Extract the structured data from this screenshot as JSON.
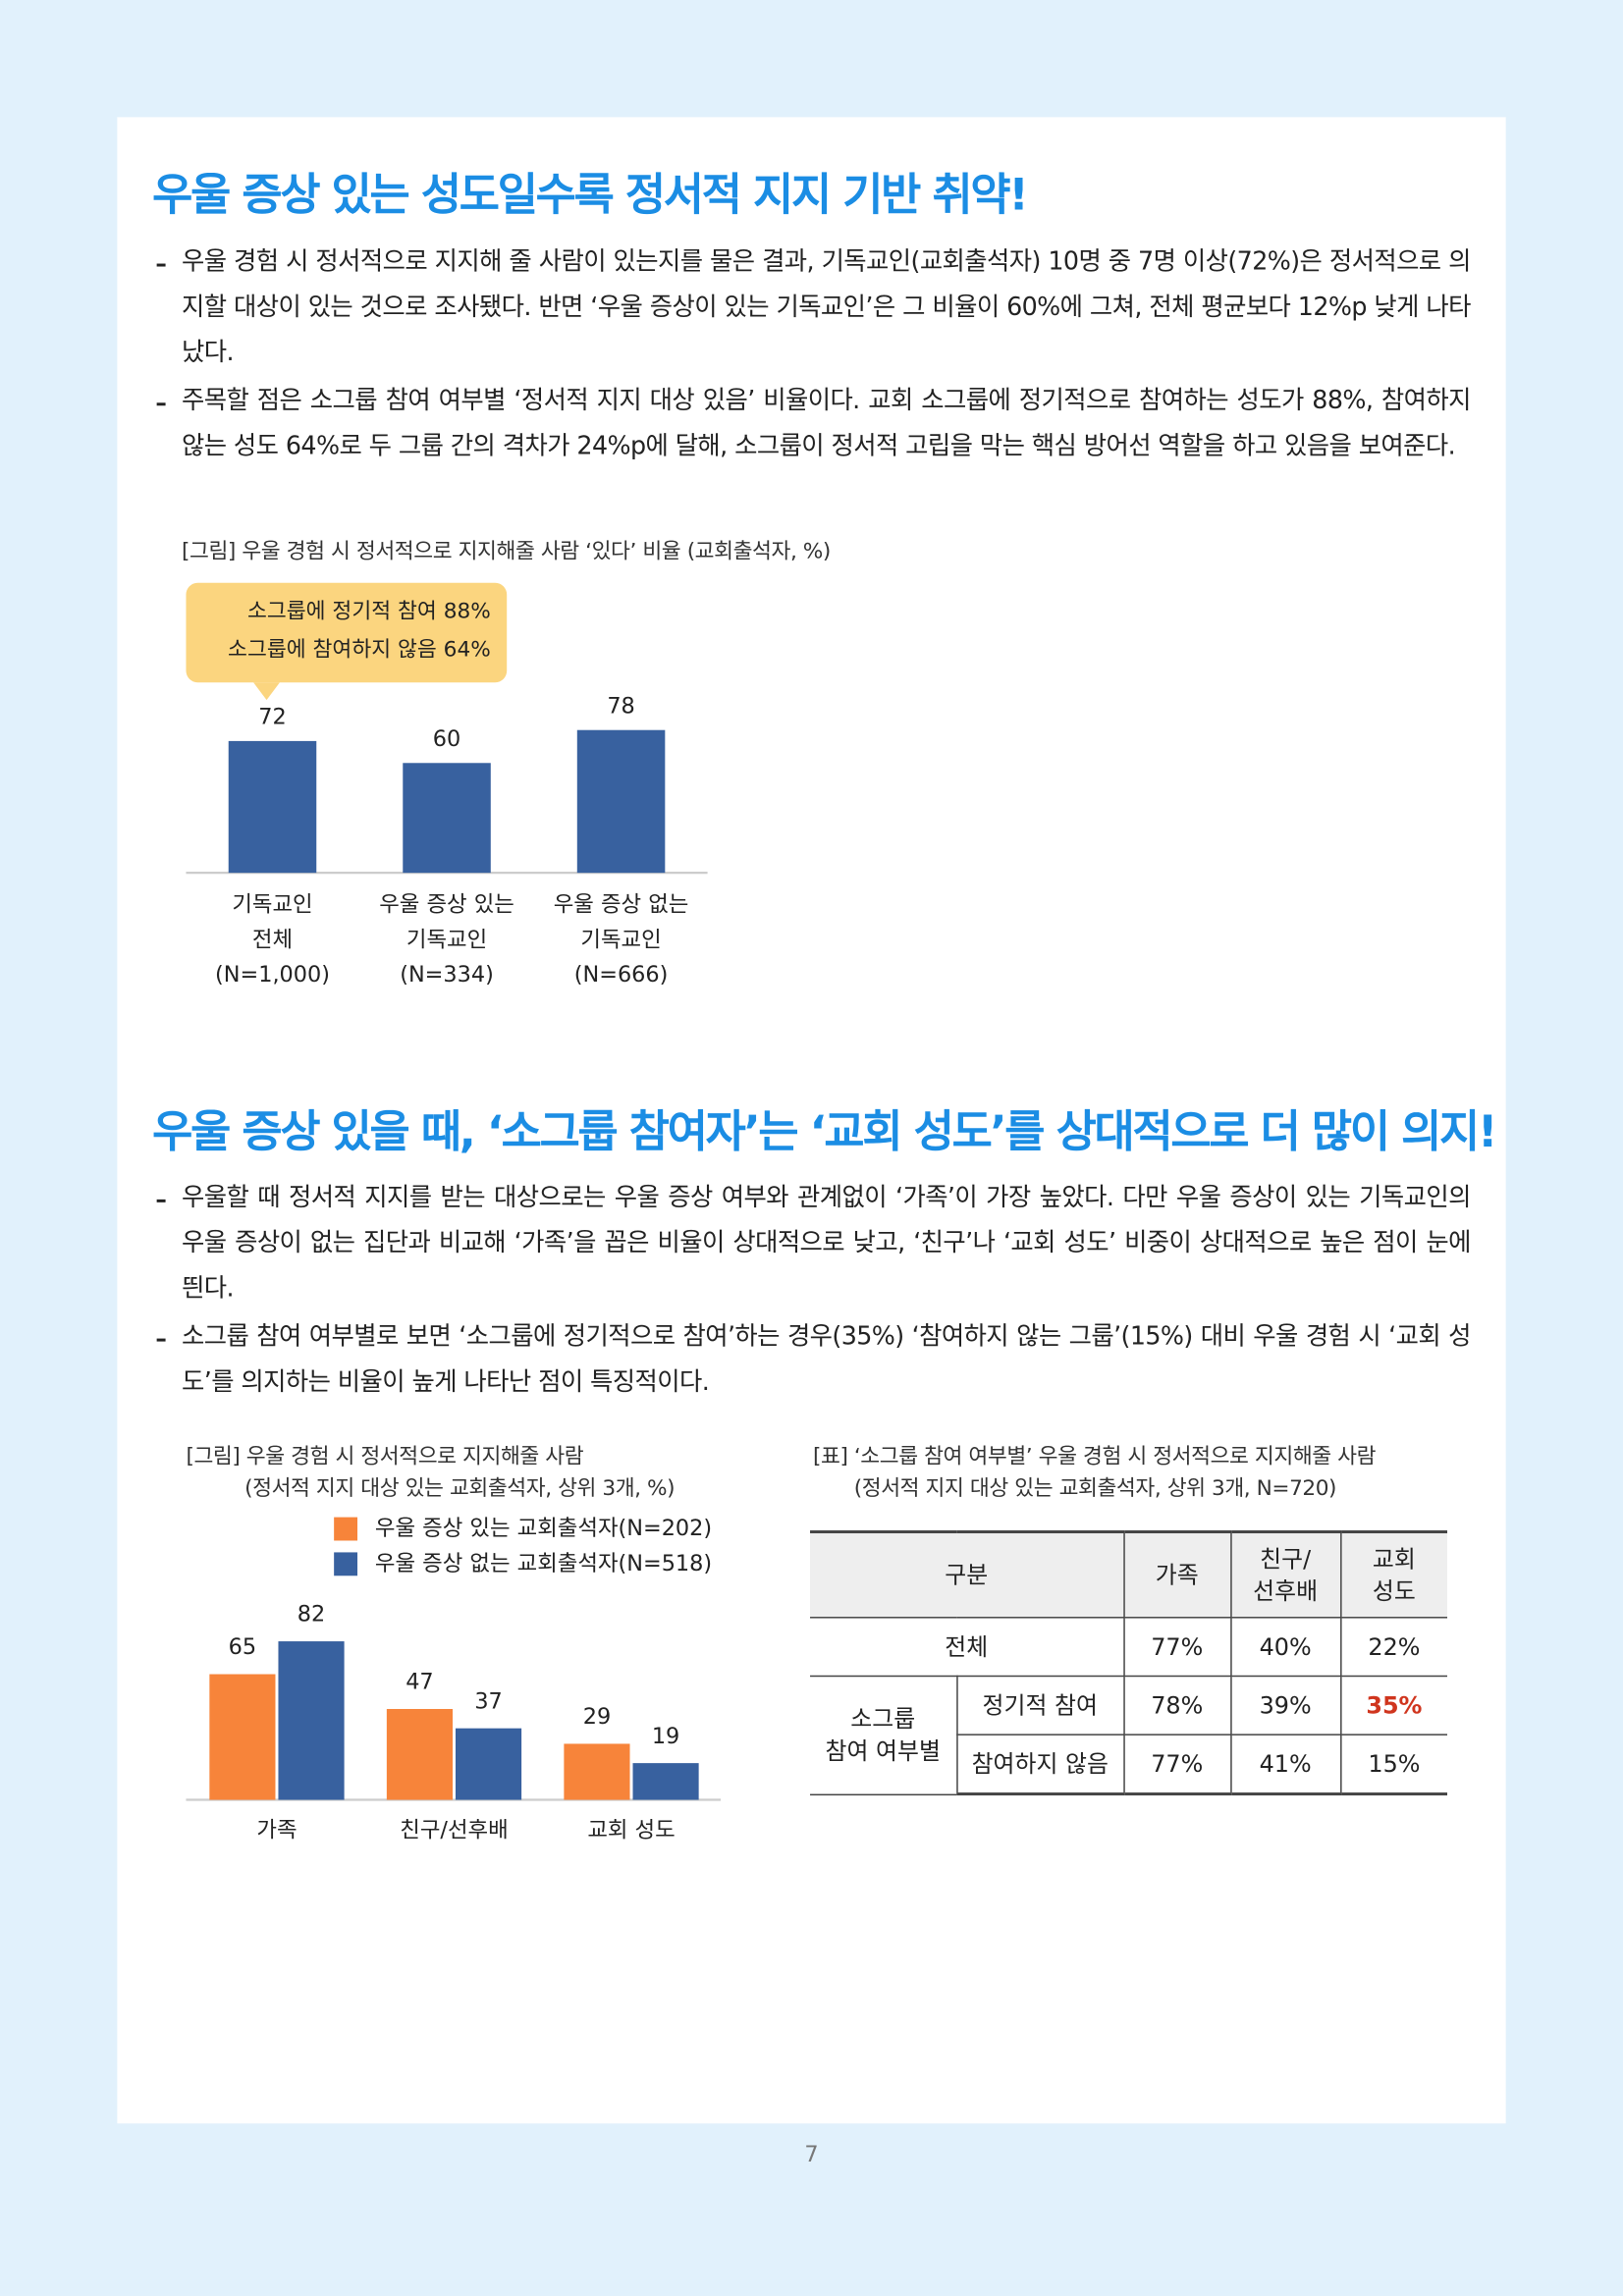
{
  "section1": {
    "title": "우울 증상 있는 성도일수록 정서적 지지 기반 취약!",
    "bullets": [
      "우울 경험 시 정서적으로 지지해 줄 사람이 있는지를 물은 결과, 기독교인(교회출석자) 10명 중 7명 이상(72%)은 정서적으로 의지할 대상이 있는 것으로 조사됐다. 반면 ‘우울 증상이 있는 기독교인’은 그 비율이 60%에 그쳐, 전체 평균보다 12%p 낮게 나타났다.",
      "주목할 점은 소그룹 참여 여부별 ‘정서적 지지 대상 있음’ 비율이다. 교회 소그룹에 정기적으로 참여하는 성도가 88%, 참여하지 않는 성도 64%로 두 그룹 간의 격차가 24%p에 달해, 소그룹이 정서적 고립을 막는 핵심 방어선 역할을 하고 있음을 보여준다."
    ]
  },
  "section2": {
    "title": "우울 증상 있을 때, ‘소그룹 참여자’는 ‘교회 성도’를 상대적으로 더 많이 의지!",
    "bullets": [
      "우울할 때 정서적 지지를 받는 대상으로는 우울 증상 여부와 관계없이 ‘가족’이 가장 높았다. 다만 우울 증상이 있는 기독교인의 우울 증상이 없는 집단과 비교해 ‘가족’을 꼽은 비율이 상대적으로 낮고, ‘친구’나 ‘교회 성도’ 비중이 상대적으로 높은 점이 눈에 띈다.",
      "소그룹 참여 여부별로 보면 ‘소그룹에 정기적으로 참여’하는 경우(35%) ‘참여하지 않는 그룹’(15%) 대비 우울 경험 시 ‘교회 성도’를 의지하는 비율이 높게 나타난 점이 특징적이다."
    ]
  },
  "chart_data": [
    {
      "type": "bar",
      "title": [
        "[그림] 우울 경험 시 정서적으로 지지해줄 사람 ‘있다’ 비율 (교회출석자, %)"
      ],
      "annotations": [
        "소그룹에 정기적 참여 88%",
        "소그룹에 참여하지 않음 64%"
      ],
      "categories": [
        [
          "기독교인",
          "전체",
          "(N=1,000)"
        ],
        [
          "우울 증상 있는",
          "기독교인",
          "(N=334)"
        ],
        [
          "우울 증상 없는",
          "기독교인",
          "(N=666)"
        ]
      ],
      "series": [
        {
          "color": "#38619f",
          "values": [
            72,
            60,
            78
          ]
        }
      ]
    },
    {
      "type": "bar",
      "title": [
        "[그림] 우울 경험 시 정서적으로 지지해줄 사람",
        "(정서적 지지 대상 있는 교회출석자, 상위 3개, %)"
      ],
      "categories": [
        [
          "가족"
        ],
        [
          "친구/선후배"
        ],
        [
          "교회 성도"
        ]
      ],
      "series": [
        {
          "name": "우울 증상 있는 교회출석자(N=202)",
          "color": "#f7843a",
          "values": [
            65,
            47,
            29
          ]
        },
        {
          "name": "우울 증상 없는 교회출석자(N=518)",
          "color": "#38619f",
          "values": [
            82,
            37,
            19
          ]
        }
      ]
    }
  ],
  "table": {
    "title": [
      "[표] ‘소그룹 참여 여부별’ 우울 경험 시 정서적으로 지지해줄 사람",
      "(정서적 지지 대상 있는 교회출석자, 상위 3개, N=720)"
    ],
    "header": [
      [
        "구분"
      ],
      [
        "가족"
      ],
      [
        "친구/",
        "선후배"
      ],
      [
        "교회",
        "성도"
      ]
    ],
    "total": [
      "전체",
      "77%",
      "40%",
      "22%"
    ],
    "group": [
      "소그룹",
      "참여 여부별"
    ],
    "rows": [
      [
        "정기적 참여",
        "78%",
        "39%",
        "35%"
      ],
      [
        "참여하지 않음",
        "77%",
        "41%",
        "15%"
      ]
    ]
  },
  "page_number": "7"
}
